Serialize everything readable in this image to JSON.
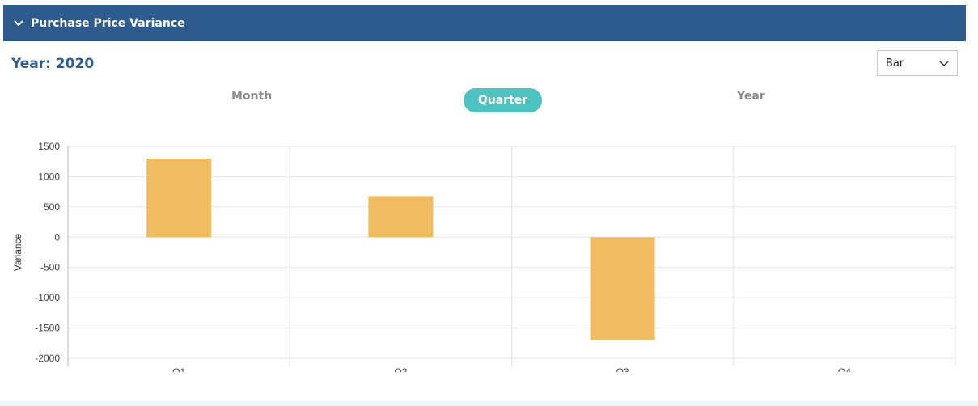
{
  "panel": {
    "title": "Purchase Price Variance"
  },
  "year_label": "Year: 2020",
  "chart_type_select": {
    "value": "Bar"
  },
  "tabs": [
    {
      "label": "Month",
      "active": false
    },
    {
      "label": "Quarter",
      "active": true
    },
    {
      "label": "Year",
      "active": false
    }
  ],
  "colors": {
    "header_bg": "#2d5b8e",
    "accent": "#4ec2c0",
    "bar": "#f0bc62"
  },
  "chart_data": {
    "type": "bar",
    "categories": [
      "Q1",
      "Q2",
      "Q3",
      "Q4"
    ],
    "values": [
      1300,
      680,
      -1700,
      0
    ],
    "ylabel": "Variance",
    "xlabel": "",
    "ylim": [
      -2000,
      1500
    ],
    "yticks": [
      1500,
      1000,
      500,
      0,
      -500,
      -1000,
      -1500,
      -2000
    ],
    "grid": true
  }
}
